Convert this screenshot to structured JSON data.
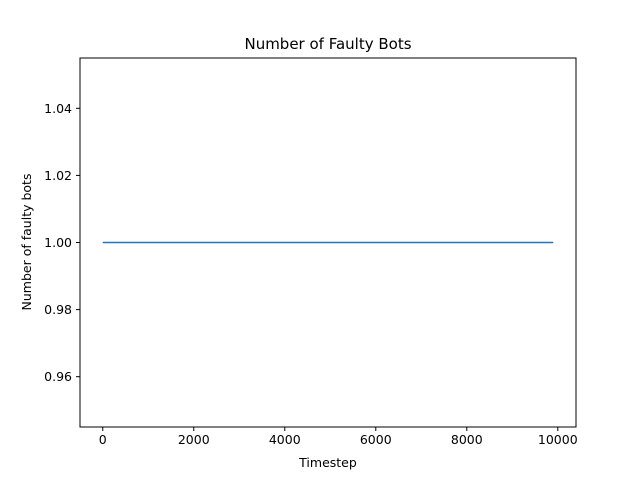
{
  "chart_data": {
    "type": "line",
    "title": "Number of Faulty Bots",
    "xlabel": "Timestep",
    "ylabel": "Number of faulty bots",
    "xlim": [
      -500,
      10400
    ],
    "ylim": [
      0.945,
      1.055
    ],
    "xticks": [
      0,
      2000,
      4000,
      6000,
      8000,
      10000
    ],
    "xtick_labels": [
      "0",
      "2000",
      "4000",
      "6000",
      "8000",
      "10000"
    ],
    "yticks": [
      0.96,
      0.98,
      1.0,
      1.02,
      1.04
    ],
    "ytick_labels": [
      "0.96",
      "0.98",
      "1.00",
      "1.02",
      "1.04"
    ],
    "grid": false,
    "series": [
      {
        "color": "#1f77b4",
        "x": [
          0,
          9900
        ],
        "y": [
          1.0,
          1.0
        ]
      }
    ]
  }
}
